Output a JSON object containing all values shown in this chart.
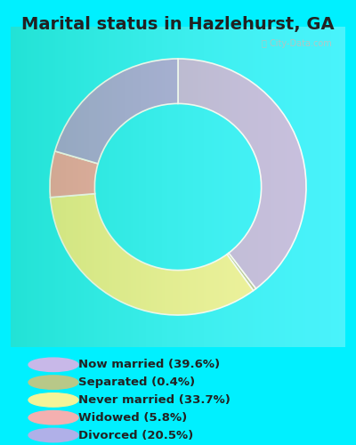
{
  "title": "Marital status in Hazlehurst, GA",
  "title_fontsize": 14,
  "outer_bg": "#00f0ff",
  "chart_bg_color": "#e8f5e8",
  "watermark": "ⓘ City-Data.com",
  "slices": [
    {
      "label": "Now married (39.6%)",
      "value": 39.6,
      "color": "#b8a8d8"
    },
    {
      "label": "Separated (0.4%)",
      "value": 0.4,
      "color": "#a8b878"
    },
    {
      "label": "Never married (33.7%)",
      "value": 33.7,
      "color": "#f0f080"
    },
    {
      "label": "Widowed (5.8%)",
      "value": 5.8,
      "color": "#f09898"
    },
    {
      "label": "Divorced (20.5%)",
      "value": 20.5,
      "color": "#9898d8"
    }
  ],
  "legend_marker_colors": [
    "#c8b8e8",
    "#b8c888",
    "#f4f498",
    "#f4b0b0",
    "#b0b0e8"
  ],
  "donut_width": 0.35,
  "figsize": [
    4.0,
    5.0
  ],
  "dpi": 100
}
